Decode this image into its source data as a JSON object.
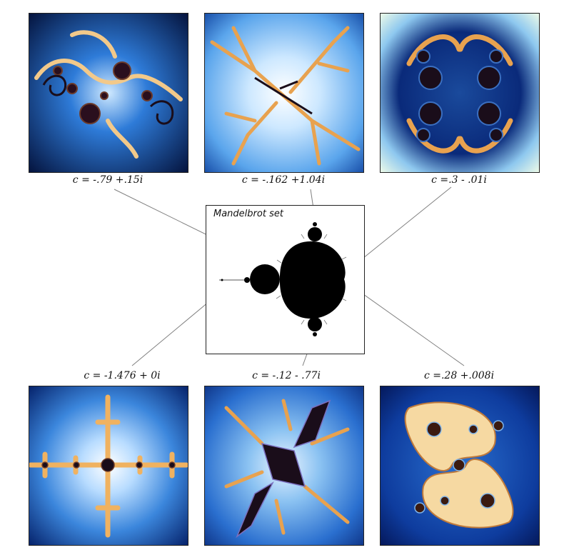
{
  "center_panel": {
    "title": "Mandelbrot set"
  },
  "julia_sets": [
    {
      "id": "tl",
      "label": "c = -.79 +.15i"
    },
    {
      "id": "tc",
      "label": "c = -.162 +1.04i"
    },
    {
      "id": "tr",
      "label": "c =.3 - .01i"
    },
    {
      "id": "bl",
      "label": "c = -1.476 + 0i"
    },
    {
      "id": "bc",
      "label": "c = -.12 - .77i"
    },
    {
      "id": "br",
      "label": "c =.28 +.008i"
    }
  ],
  "colors": {
    "deep_blue": "#0a1f5c",
    "light_blue": "#bfe3ff",
    "orange": "#f0a55a",
    "dark_interior": "#1a0d1a",
    "connector": "#808080"
  }
}
